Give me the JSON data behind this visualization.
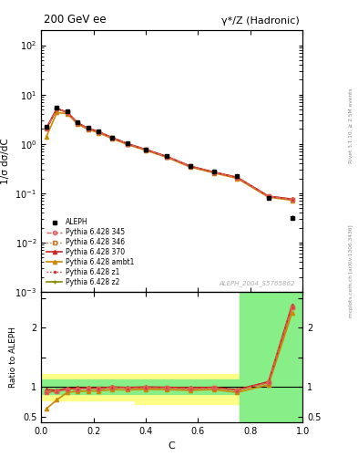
{
  "title_left": "200 GeV ee",
  "title_right": "γ*/Z (Hadronic)",
  "ylabel_main": "1/σ dσ/dC",
  "ylabel_ratio": "Ratio to ALEPH",
  "xlabel": "C",
  "right_label_top": "Rivet 3.1.10, ≥ 2.5M events",
  "right_label_bottom": "mcplots.cern.ch [arXiv:1306.3436]",
  "watermark": "ALEPH_2004_S5765862",
  "C_centers": [
    0.02,
    0.06,
    0.1,
    0.14,
    0.18,
    0.22,
    0.27,
    0.33,
    0.4,
    0.48,
    0.57,
    0.66,
    0.75,
    0.87,
    0.96
  ],
  "aleph_y": [
    2.2,
    5.5,
    4.5,
    2.7,
    2.1,
    1.8,
    1.35,
    1.02,
    0.77,
    0.56,
    0.36,
    0.27,
    0.22,
    0.08,
    0.032
  ],
  "aleph_yerr_lo": [
    0.12,
    0.22,
    0.18,
    0.1,
    0.08,
    0.07,
    0.06,
    0.04,
    0.035,
    0.025,
    0.018,
    0.013,
    0.01,
    0.004,
    0.003
  ],
  "aleph_yerr_hi": [
    0.12,
    0.22,
    0.18,
    0.1,
    0.08,
    0.07,
    0.06,
    0.04,
    0.035,
    0.025,
    0.018,
    0.013,
    0.01,
    0.004,
    0.003
  ],
  "pythia_345_y": [
    2.0,
    5.1,
    4.3,
    2.6,
    2.05,
    1.74,
    1.34,
    1.0,
    0.76,
    0.55,
    0.35,
    0.265,
    0.208,
    0.086,
    0.075
  ],
  "pythia_346_y": [
    2.0,
    5.1,
    4.3,
    2.6,
    2.05,
    1.74,
    1.34,
    1.0,
    0.76,
    0.55,
    0.35,
    0.265,
    0.208,
    0.086,
    0.075
  ],
  "pythia_370_y": [
    2.1,
    5.2,
    4.4,
    2.65,
    2.07,
    1.76,
    1.35,
    1.01,
    0.77,
    0.556,
    0.355,
    0.268,
    0.21,
    0.087,
    0.076
  ],
  "pythia_ambt1_y": [
    1.4,
    4.3,
    4.1,
    2.5,
    1.96,
    1.68,
    1.29,
    0.97,
    0.74,
    0.535,
    0.34,
    0.258,
    0.2,
    0.083,
    0.072
  ],
  "pythia_z1_y": [
    2.0,
    5.1,
    4.3,
    2.6,
    2.05,
    1.74,
    1.34,
    1.0,
    0.76,
    0.55,
    0.35,
    0.265,
    0.208,
    0.086,
    0.075
  ],
  "pythia_z2_y": [
    2.0,
    5.15,
    4.35,
    2.62,
    2.06,
    1.75,
    1.345,
    1.005,
    0.765,
    0.553,
    0.352,
    0.267,
    0.209,
    0.0865,
    0.0753
  ],
  "ratio_345": [
    0.91,
    0.925,
    0.955,
    0.963,
    0.976,
    0.967,
    0.992,
    0.98,
    0.987,
    0.982,
    0.972,
    0.981,
    0.945,
    1.075,
    2.34
  ],
  "ratio_346": [
    0.91,
    0.925,
    0.957,
    0.963,
    0.976,
    0.967,
    0.992,
    0.98,
    0.987,
    0.982,
    0.972,
    0.981,
    0.945,
    1.075,
    2.34
  ],
  "ratio_370": [
    0.955,
    0.945,
    0.978,
    0.981,
    0.986,
    0.978,
    1.0,
    0.99,
    1.0,
    0.993,
    0.986,
    0.993,
    0.955,
    1.088,
    2.375
  ],
  "ratio_ambt1": [
    0.636,
    0.782,
    0.911,
    0.926,
    0.933,
    0.933,
    0.956,
    0.951,
    0.961,
    0.955,
    0.944,
    0.956,
    0.909,
    1.038,
    2.25
  ],
  "ratio_z1": [
    0.91,
    0.925,
    0.955,
    0.963,
    0.976,
    0.967,
    0.992,
    0.98,
    0.987,
    0.982,
    0.972,
    0.981,
    0.945,
    1.075,
    2.34
  ],
  "ratio_z2": [
    0.91,
    0.936,
    0.967,
    0.97,
    0.981,
    0.972,
    0.996,
    0.985,
    0.994,
    0.988,
    0.978,
    0.989,
    0.95,
    1.081,
    2.355
  ],
  "band_edges": [
    0.0,
    0.04,
    0.08,
    0.12,
    0.16,
    0.2,
    0.24,
    0.3,
    0.36,
    0.44,
    0.52,
    0.6,
    0.68,
    0.76,
    0.84,
    1.0
  ],
  "band_green_lo": [
    0.88,
    0.88,
    0.88,
    0.88,
    0.88,
    0.88,
    0.88,
    0.88,
    0.88,
    0.88,
    0.88,
    0.88,
    0.88,
    0.4,
    0.4
  ],
  "band_green_hi": [
    1.12,
    1.12,
    1.12,
    1.12,
    1.12,
    1.12,
    1.12,
    1.12,
    1.12,
    1.12,
    1.12,
    1.12,
    1.12,
    2.65,
    2.65
  ],
  "band_yellow_lo": [
    0.78,
    0.78,
    0.78,
    0.78,
    0.78,
    0.78,
    0.78,
    0.78,
    0.72,
    0.72,
    0.72,
    0.72,
    0.72,
    0.4,
    0.4
  ],
  "band_yellow_hi": [
    1.22,
    1.22,
    1.22,
    1.22,
    1.22,
    1.22,
    1.22,
    1.22,
    1.22,
    1.22,
    1.22,
    1.22,
    1.22,
    2.65,
    2.65
  ],
  "color_345": "#e06060",
  "color_346": "#c87020",
  "color_370": "#cc2222",
  "color_ambt1": "#cc8800",
  "color_z1": "#cc3333",
  "color_z2": "#888800",
  "bg_color": "#ffffff",
  "ratio_ylim": [
    0.4,
    2.6
  ],
  "main_ylim_lo": 0.001,
  "main_ylim_hi": 200.0
}
